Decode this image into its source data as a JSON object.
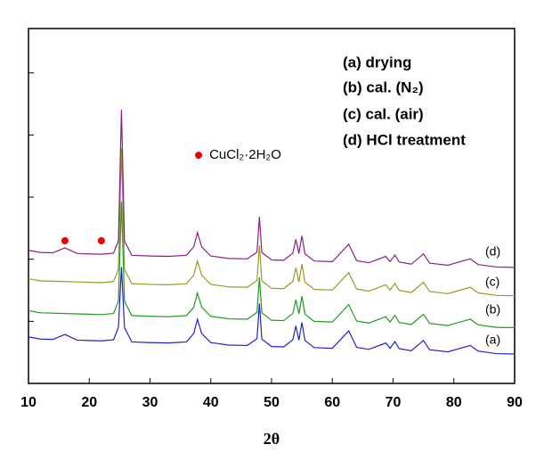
{
  "chart_data": {
    "type": "line",
    "xlabel": "2θ",
    "annotations": [
      "(a) drying",
      "(b) cal. (N₂)",
      "(c) cal. (air)",
      "(d) HCl treatment"
    ],
    "xlim": [
      10,
      90
    ],
    "xticks": [
      10,
      20,
      30,
      40,
      50,
      60,
      70,
      80,
      90
    ],
    "ylim": [
      0,
      100
    ],
    "yticks": [
      0,
      17.5,
      35,
      52.5,
      70,
      87.5
    ],
    "x": [
      10,
      12,
      14,
      16,
      18,
      20,
      22,
      24,
      24.8,
      25.3,
      25.8,
      27,
      30,
      33,
      36,
      37.2,
      37.8,
      38.5,
      40,
      43,
      46,
      47.6,
      48,
      48.4,
      50,
      52,
      53.5,
      54,
      54.5,
      55,
      55.5,
      57,
      60,
      62.7,
      64,
      66,
      68.8,
      69.5,
      70.3,
      71,
      73,
      75,
      76,
      79,
      82.7,
      84,
      87,
      90
    ],
    "series": [
      {
        "name": "(a)",
        "color": "#2222c8",
        "values": [
          13.1,
          12.5,
          12.4,
          13.8,
          12.2,
          12.1,
          12.0,
          12.3,
          15.8,
          32.8,
          15.7,
          11.7,
          11.5,
          11.4,
          11.7,
          14.1,
          18.1,
          14.1,
          11.5,
          10.8,
          10.7,
          12.6,
          22.5,
          12.5,
          10.4,
          10.3,
          12.3,
          16.2,
          12.2,
          17.2,
          12.1,
          10.1,
          9.9,
          14.8,
          10.2,
          9.6,
          11.4,
          9.9,
          11.8,
          9.8,
          9.2,
          12.1,
          9.5,
          8.9,
          10.7,
          9.1,
          8.4,
          8.3
        ]
      },
      {
        "name": "(b)",
        "color": "#229922",
        "values": [
          20.5,
          19.9,
          19.8,
          19.7,
          19.6,
          19.5,
          19.4,
          19.7,
          23.2,
          51.2,
          23.1,
          19.1,
          18.9,
          18.8,
          19.1,
          21.5,
          25.5,
          21.5,
          18.9,
          18.2,
          18.1,
          20.0,
          29.9,
          19.9,
          17.8,
          17.7,
          19.7,
          23.6,
          19.6,
          24.6,
          19.5,
          17.5,
          17.3,
          22.2,
          17.6,
          17.0,
          18.8,
          17.3,
          19.2,
          17.2,
          16.6,
          19.5,
          16.9,
          16.3,
          18.1,
          16.5,
          15.8,
          15.7
        ]
      },
      {
        "name": "(c)",
        "color": "#999922",
        "values": [
          29.5,
          28.9,
          28.8,
          28.7,
          28.6,
          28.5,
          28.4,
          28.7,
          32.2,
          66.2,
          32.1,
          28.1,
          27.9,
          27.8,
          28.1,
          30.5,
          34.5,
          30.5,
          27.9,
          27.2,
          27.1,
          29.0,
          38.9,
          28.9,
          26.8,
          26.7,
          28.7,
          32.6,
          28.6,
          33.6,
          28.5,
          26.5,
          26.3,
          31.2,
          26.6,
          26.0,
          27.8,
          26.3,
          28.2,
          26.2,
          25.6,
          28.5,
          25.9,
          25.3,
          27.1,
          25.5,
          24.8,
          24.7
        ]
      },
      {
        "name": "(d)",
        "color": "#8a1f8a",
        "values": [
          37.5,
          36.9,
          36.8,
          38.2,
          36.6,
          36.5,
          36.4,
          36.7,
          40.2,
          77.2,
          40.1,
          36.1,
          35.9,
          35.8,
          36.1,
          38.5,
          42.5,
          38.5,
          35.9,
          35.2,
          35.1,
          37.0,
          46.9,
          36.9,
          34.8,
          34.7,
          36.7,
          40.6,
          36.6,
          41.6,
          36.5,
          34.5,
          34.3,
          39.2,
          34.6,
          34.0,
          35.8,
          34.3,
          36.2,
          34.2,
          33.6,
          36.5,
          33.9,
          33.3,
          35.1,
          33.5,
          32.8,
          32.7
        ]
      }
    ],
    "markers": {
      "name": "CuCl₂·2H₂O",
      "color": "#ee0000",
      "x": [
        16,
        22,
        38
      ],
      "values": [
        40.2,
        40.2,
        64.3
      ]
    }
  }
}
